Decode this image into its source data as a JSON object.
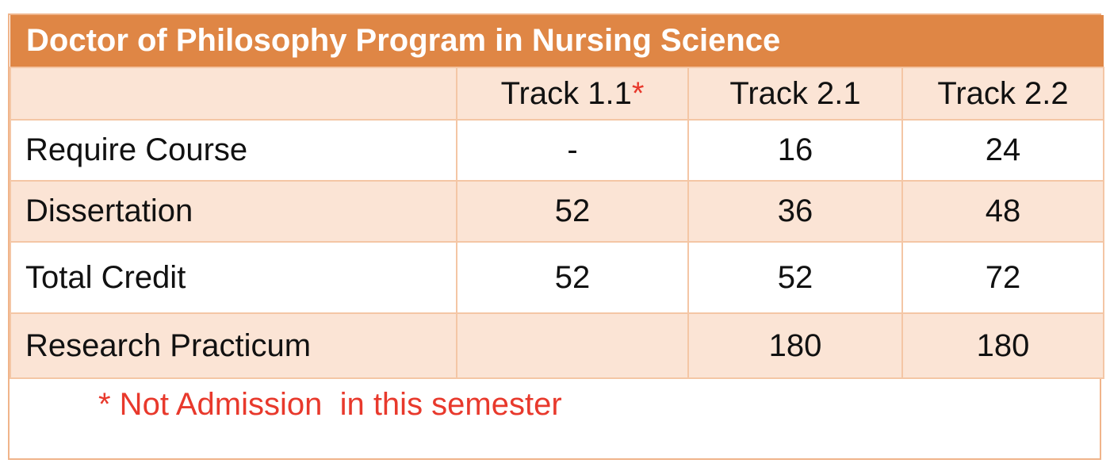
{
  "table": {
    "title": "Doctor of Philosophy Program in Nursing Science",
    "columns": [
      {
        "label": "Track 1.1",
        "marker": "*"
      },
      {
        "label": "Track 2.1",
        "marker": ""
      },
      {
        "label": "Track 2.2",
        "marker": ""
      }
    ],
    "rows": [
      {
        "label": "Require Course",
        "values": [
          "-",
          "16",
          "24"
        ]
      },
      {
        "label": "Dissertation",
        "values": [
          "52",
          "36",
          "48"
        ]
      },
      {
        "label": "Total Credit",
        "values": [
          "52",
          "52",
          "72"
        ]
      },
      {
        "label": "Research Practicum",
        "values": [
          "",
          "180",
          "180"
        ]
      }
    ],
    "footnote": "* Not Admission  in this semester"
  },
  "colors": {
    "title_bg": "#df8645",
    "shaded_row_bg": "#fbe4d5",
    "border": "#f4c6a5",
    "footnote": "#e8392c"
  }
}
